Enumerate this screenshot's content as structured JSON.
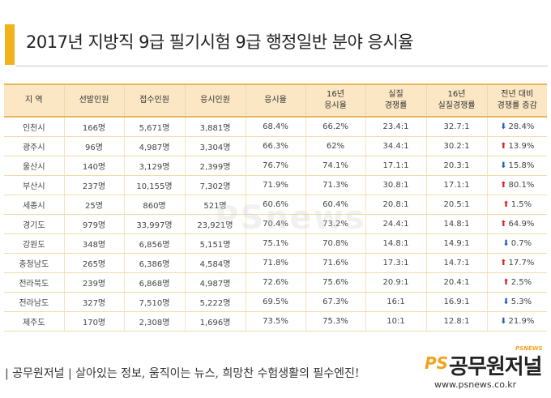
{
  "title": "2017년 지방직 9급 필기시험 9급 행정일반 분야 응시율",
  "colors": {
    "accent": "#f2b21c",
    "header_bg": "#fbe7c4",
    "up": "#d4271f",
    "down": "#1f5fb3"
  },
  "table": {
    "headers": [
      [
        "지 역"
      ],
      [
        "선발인원"
      ],
      [
        "접수인원"
      ],
      [
        "응시인원"
      ],
      [
        "응시율"
      ],
      [
        "16년",
        "응시율"
      ],
      [
        "실질",
        "경쟁률"
      ],
      [
        "16년",
        "실질경쟁률"
      ],
      [
        "전년 대비",
        "경쟁률 증감"
      ]
    ],
    "rows": [
      {
        "region": "인천시",
        "selected": "166명",
        "applied": "5,671명",
        "attended": "3,881명",
        "rate": "68.4%",
        "rate16": "66.2%",
        "comp": "23.4:1",
        "comp16": "32.7:1",
        "dir": "down",
        "change": "28.4%"
      },
      {
        "region": "광주시",
        "selected": "96명",
        "applied": "4,987명",
        "attended": "3,304명",
        "rate": "66.3%",
        "rate16": "62%",
        "comp": "34.4:1",
        "comp16": "30.2:1",
        "dir": "up",
        "change": "13.9%"
      },
      {
        "region": "울산시",
        "selected": "140명",
        "applied": "3,129명",
        "attended": "2,399명",
        "rate": "76.7%",
        "rate16": "74.1%",
        "comp": "17.1:1",
        "comp16": "20.3:1",
        "dir": "down",
        "change": "15.8%"
      },
      {
        "region": "부산시",
        "selected": "237명",
        "applied": "10,155명",
        "attended": "7,302명",
        "rate": "71.9%",
        "rate16": "71.3%",
        "comp": "30.8:1",
        "comp16": "17.1:1",
        "dir": "up",
        "change": "80.1%"
      },
      {
        "region": "세종시",
        "selected": "25명",
        "applied": "860명",
        "attended": "521명",
        "rate": "60.6%",
        "rate16": "60.4%",
        "comp": "20.8:1",
        "comp16": "20.5:1",
        "dir": "up",
        "change": "1.5%"
      },
      {
        "region": "경기도",
        "selected": "979명",
        "applied": "33,997명",
        "attended": "23,921명",
        "rate": "70.4%",
        "rate16": "73.2%",
        "comp": "24.4:1",
        "comp16": "14.8:1",
        "dir": "up",
        "change": "64.9%"
      },
      {
        "region": "강원도",
        "selected": "348명",
        "applied": "6,856명",
        "attended": "5,151명",
        "rate": "75.1%",
        "rate16": "70.8%",
        "comp": "14.8:1",
        "comp16": "14.9:1",
        "dir": "down",
        "change": "0.7%"
      },
      {
        "region": "충청남도",
        "selected": "265명",
        "applied": "6,386명",
        "attended": "4,584명",
        "rate": "71.8%",
        "rate16": "71.6%",
        "comp": "17.3:1",
        "comp16": "14.7:1",
        "dir": "up",
        "change": "17.7%"
      },
      {
        "region": "전라북도",
        "selected": "239명",
        "applied": "6,868명",
        "attended": "4,987명",
        "rate": "72.6%",
        "rate16": "75.6%",
        "comp": "20.9:1",
        "comp16": "20.4:1",
        "dir": "up",
        "change": "2.5%"
      },
      {
        "region": "전라남도",
        "selected": "327명",
        "applied": "7,510명",
        "attended": "5,222명",
        "rate": "69.5%",
        "rate16": "67.3%",
        "comp": "16:1",
        "comp16": "16.9:1",
        "dir": "down",
        "change": "5.3%"
      },
      {
        "region": "제주도",
        "selected": "170명",
        "applied": "2,308명",
        "attended": "1,696명",
        "rate": "73.5%",
        "rate16": "75.3%",
        "comp": "10:1",
        "comp16": "12.8:1",
        "dir": "down",
        "change": "21.9%"
      }
    ]
  },
  "watermark": "PSnews",
  "footer": {
    "slogan": "| 공무원저널 |  살아있는 정보, 움직이는 뉴스, 희망찬 수험생활의 필수엔진!",
    "logo_ps": "PS",
    "logo_name": "공무원저널",
    "logo_sub": "PSNEWS",
    "url": "www.psnews.co.kr"
  }
}
